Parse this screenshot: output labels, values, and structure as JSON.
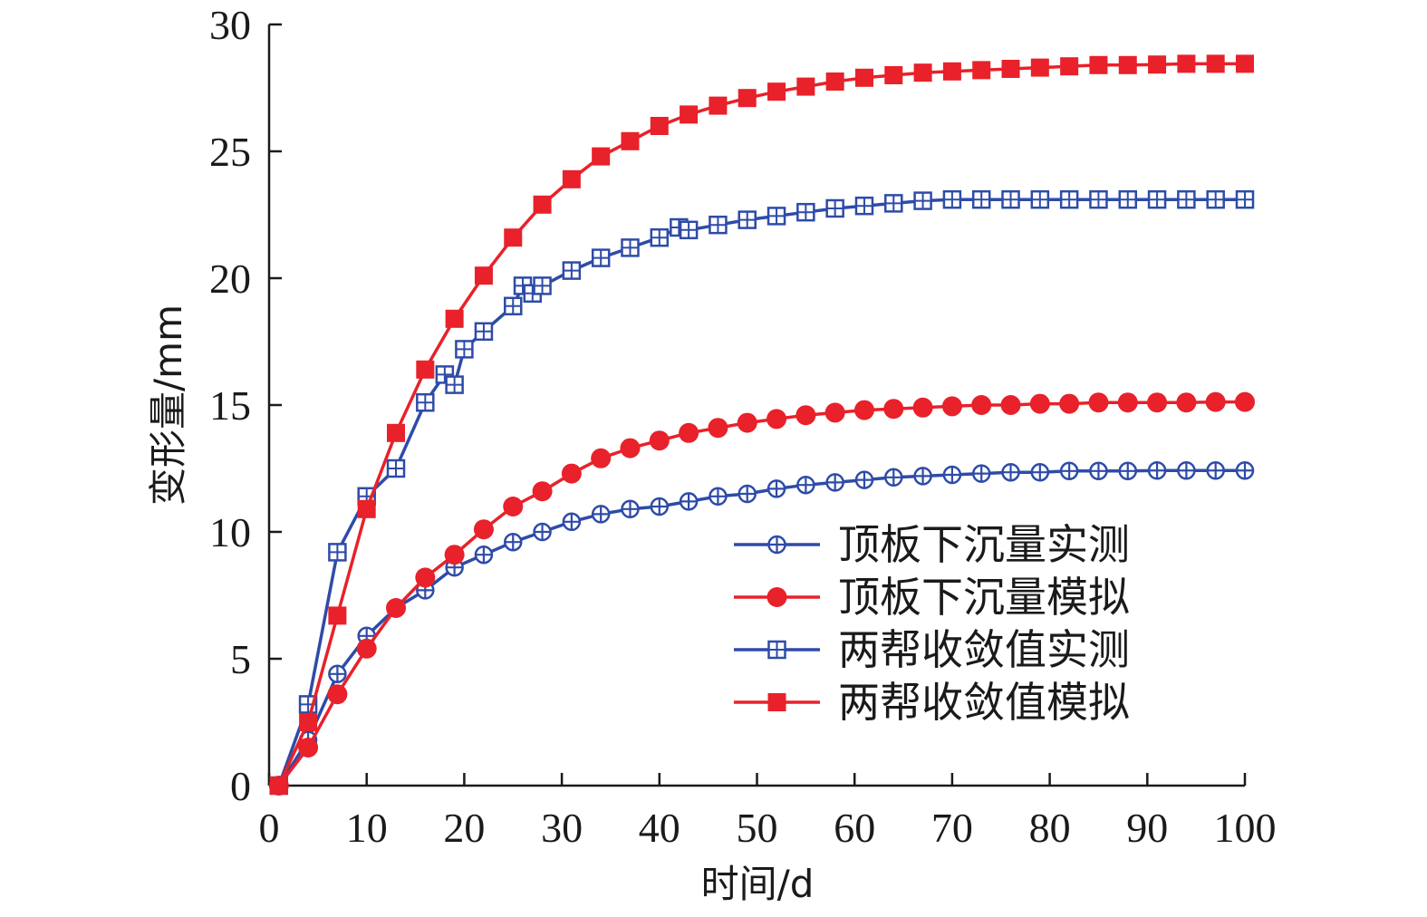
{
  "chart_data": {
    "type": "line",
    "xlabel": "时间/d",
    "ylabel": "变形量/mm",
    "xlim": [
      0,
      100
    ],
    "ylim": [
      0,
      30
    ],
    "xticks": [
      0,
      10,
      20,
      30,
      40,
      50,
      60,
      70,
      80,
      90,
      100
    ],
    "yticks": [
      0,
      5,
      10,
      15,
      20,
      25,
      30
    ],
    "grid": false,
    "legend_position": "center-right",
    "series": [
      {
        "name": "顶板下沉量实测",
        "color": "#2E4BA8",
        "marker": "circle-plus",
        "points": [
          [
            1,
            0
          ],
          [
            4,
            1.8
          ],
          [
            7,
            4.4
          ],
          [
            10,
            5.9
          ],
          [
            13,
            7.0
          ],
          [
            16,
            7.7
          ],
          [
            19,
            8.6
          ],
          [
            22,
            9.1
          ],
          [
            25,
            9.6
          ],
          [
            28,
            10.0
          ],
          [
            31,
            10.4
          ],
          [
            34,
            10.7
          ],
          [
            37,
            10.9
          ],
          [
            40,
            11.0
          ],
          [
            43,
            11.2
          ],
          [
            46,
            11.4
          ],
          [
            49,
            11.5
          ],
          [
            52,
            11.7
          ],
          [
            55,
            11.85
          ],
          [
            58,
            11.95
          ],
          [
            61,
            12.05
          ],
          [
            64,
            12.15
          ],
          [
            67,
            12.2
          ],
          [
            70,
            12.25
          ],
          [
            73,
            12.3
          ],
          [
            76,
            12.35
          ],
          [
            79,
            12.35
          ],
          [
            82,
            12.4
          ],
          [
            85,
            12.4
          ],
          [
            88,
            12.4
          ],
          [
            91,
            12.42
          ],
          [
            94,
            12.42
          ],
          [
            97,
            12.42
          ],
          [
            100,
            12.42
          ]
        ]
      },
      {
        "name": "顶板下沉量模拟",
        "color": "#E8212A",
        "marker": "filled-circle",
        "points": [
          [
            1,
            0
          ],
          [
            4,
            1.5
          ],
          [
            7,
            3.6
          ],
          [
            10,
            5.4
          ],
          [
            13,
            7.0
          ],
          [
            16,
            8.2
          ],
          [
            19,
            9.1
          ],
          [
            22,
            10.1
          ],
          [
            25,
            11.0
          ],
          [
            28,
            11.6
          ],
          [
            31,
            12.3
          ],
          [
            34,
            12.9
          ],
          [
            37,
            13.3
          ],
          [
            40,
            13.6
          ],
          [
            43,
            13.9
          ],
          [
            46,
            14.1
          ],
          [
            49,
            14.3
          ],
          [
            52,
            14.45
          ],
          [
            55,
            14.6
          ],
          [
            58,
            14.7
          ],
          [
            61,
            14.8
          ],
          [
            64,
            14.85
          ],
          [
            67,
            14.9
          ],
          [
            70,
            14.95
          ],
          [
            73,
            15.0
          ],
          [
            76,
            15.0
          ],
          [
            79,
            15.05
          ],
          [
            82,
            15.05
          ],
          [
            85,
            15.1
          ],
          [
            88,
            15.1
          ],
          [
            91,
            15.1
          ],
          [
            94,
            15.1
          ],
          [
            97,
            15.12
          ],
          [
            100,
            15.12
          ]
        ]
      },
      {
        "name": "两帮收敛值实测",
        "color": "#2E4BA8",
        "marker": "square-plus",
        "points": [
          [
            1,
            0
          ],
          [
            4,
            3.2
          ],
          [
            7,
            9.2
          ],
          [
            10,
            11.4
          ],
          [
            13,
            12.5
          ],
          [
            16,
            15.1
          ],
          [
            18,
            16.2
          ],
          [
            19,
            15.8
          ],
          [
            20,
            17.2
          ],
          [
            22,
            17.9
          ],
          [
            25,
            18.9
          ],
          [
            26,
            19.7
          ],
          [
            27,
            19.4
          ],
          [
            28,
            19.7
          ],
          [
            31,
            20.3
          ],
          [
            34,
            20.8
          ],
          [
            37,
            21.2
          ],
          [
            40,
            21.6
          ],
          [
            42,
            22.0
          ],
          [
            43,
            21.9
          ],
          [
            46,
            22.1
          ],
          [
            49,
            22.3
          ],
          [
            52,
            22.45
          ],
          [
            55,
            22.6
          ],
          [
            58,
            22.75
          ],
          [
            61,
            22.85
          ],
          [
            64,
            22.95
          ],
          [
            67,
            23.05
          ],
          [
            70,
            23.1
          ],
          [
            73,
            23.1
          ],
          [
            76,
            23.1
          ],
          [
            79,
            23.1
          ],
          [
            82,
            23.1
          ],
          [
            85,
            23.1
          ],
          [
            88,
            23.1
          ],
          [
            91,
            23.1
          ],
          [
            94,
            23.1
          ],
          [
            97,
            23.1
          ],
          [
            100,
            23.1
          ]
        ]
      },
      {
        "name": "两帮收敛值模拟",
        "color": "#E8212A",
        "marker": "filled-square",
        "points": [
          [
            1,
            0
          ],
          [
            4,
            2.5
          ],
          [
            7,
            6.7
          ],
          [
            10,
            10.9
          ],
          [
            13,
            13.9
          ],
          [
            16,
            16.4
          ],
          [
            19,
            18.4
          ],
          [
            22,
            20.1
          ],
          [
            25,
            21.6
          ],
          [
            28,
            22.9
          ],
          [
            31,
            23.9
          ],
          [
            34,
            24.8
          ],
          [
            37,
            25.4
          ],
          [
            40,
            26.0
          ],
          [
            43,
            26.45
          ],
          [
            46,
            26.8
          ],
          [
            49,
            27.1
          ],
          [
            52,
            27.35
          ],
          [
            55,
            27.55
          ],
          [
            58,
            27.75
          ],
          [
            61,
            27.9
          ],
          [
            64,
            28.0
          ],
          [
            67,
            28.1
          ],
          [
            70,
            28.15
          ],
          [
            73,
            28.2
          ],
          [
            76,
            28.25
          ],
          [
            79,
            28.3
          ],
          [
            82,
            28.35
          ],
          [
            85,
            28.4
          ],
          [
            88,
            28.4
          ],
          [
            91,
            28.42
          ],
          [
            94,
            28.45
          ],
          [
            97,
            28.45
          ],
          [
            100,
            28.45
          ]
        ]
      }
    ]
  }
}
